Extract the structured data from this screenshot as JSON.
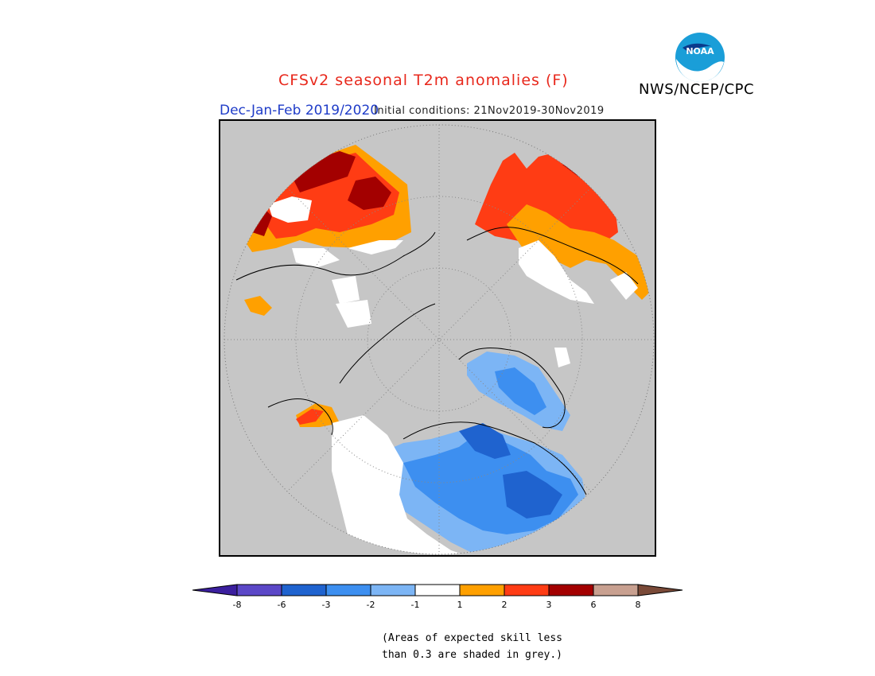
{
  "header": {
    "title": "CFSv2 seasonal T2m anomalies (F)",
    "agency": "NWS/NCEP/CPC",
    "season": "Dec-Jan-Feb 2019/2020",
    "initial_conditions": "Initial conditions: 21Nov2019-30Nov2019",
    "logo_text": "NOAA"
  },
  "colors": {
    "grey_low_skill": "#c6c6c6",
    "title_red": "#e8281c",
    "season_blue": "#1f3cc8"
  },
  "colorbar": {
    "ticks": [
      "-8",
      "-6",
      "-3",
      "-2",
      "-1",
      "1",
      "2",
      "3",
      "6",
      "8"
    ],
    "colors": [
      "#3b1f9e",
      "#5b47c7",
      "#1f63cf",
      "#3d8ff0",
      "#7cb5f5",
      "#ffffff",
      "#ffa000",
      "#ff3c14",
      "#a30000",
      "#c8a090",
      "#7a4a38"
    ]
  },
  "note": {
    "line1": "(Areas of expected skill less",
    "line2": "than 0.3 are shaded in grey.)"
  }
}
